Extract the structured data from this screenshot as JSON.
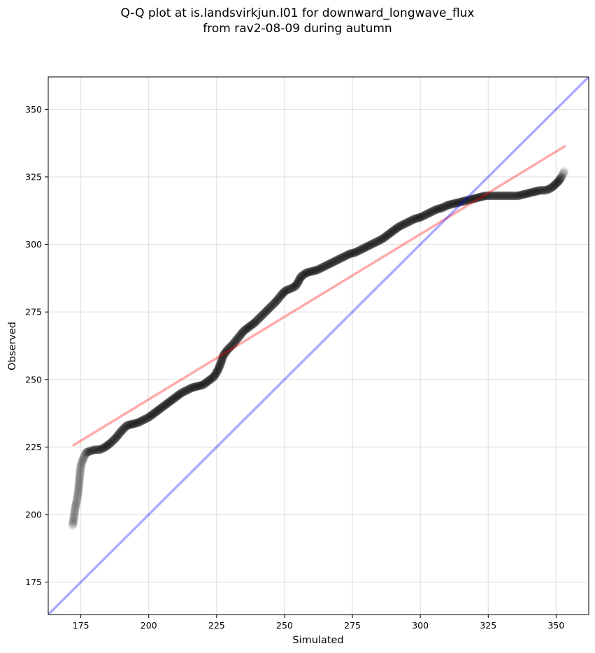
{
  "chart_data": {
    "type": "scatter",
    "title_lines": [
      "Q-Q plot at is.landsvirkjun.l01 for downward_longwave_flux",
      "from rav2-08-09 during autumn"
    ],
    "xlabel": "Simulated",
    "ylabel": "Observed",
    "xlim": [
      163,
      362
    ],
    "ylim": [
      163,
      362
    ],
    "xticks": [
      175,
      200,
      225,
      250,
      275,
      300,
      325,
      350
    ],
    "yticks": [
      175,
      200,
      225,
      250,
      275,
      300,
      325,
      350
    ],
    "grid": true,
    "quantile_points": [
      [
        172.0,
        196.0
      ],
      [
        172.4,
        198.5
      ],
      [
        173.0,
        203.0
      ],
      [
        173.3,
        204.0
      ],
      [
        174.0,
        208.0
      ],
      [
        174.3,
        211.0
      ],
      [
        174.6,
        214.5
      ],
      [
        175.0,
        218.0
      ],
      [
        175.6,
        220.0
      ],
      [
        176.3,
        221.5
      ],
      [
        177.0,
        223.0
      ],
      [
        178.5,
        223.5
      ],
      [
        180.0,
        224.0
      ],
      [
        182.0,
        224.0
      ],
      [
        184.0,
        225.0
      ],
      [
        186.0,
        226.5
      ],
      [
        188.0,
        228.5
      ],
      [
        190.0,
        231.0
      ],
      [
        192.0,
        233.0
      ],
      [
        194.0,
        233.5
      ],
      [
        196.0,
        234.0
      ],
      [
        198.0,
        235.0
      ],
      [
        200.0,
        236.0
      ],
      [
        202.0,
        237.5
      ],
      [
        204.0,
        239.0
      ],
      [
        206.0,
        240.5
      ],
      [
        208.0,
        242.0
      ],
      [
        210.0,
        243.5
      ],
      [
        212.0,
        245.0
      ],
      [
        214.0,
        246.0
      ],
      [
        216.0,
        247.0
      ],
      [
        218.0,
        247.5
      ],
      [
        220.0,
        248.0
      ],
      [
        222.0,
        249.5
      ],
      [
        224.0,
        251.0
      ],
      [
        225.5,
        253.5
      ],
      [
        226.5,
        256.0
      ],
      [
        227.5,
        259.0
      ],
      [
        229.0,
        261.0
      ],
      [
        231.0,
        263.0
      ],
      [
        233.0,
        265.5
      ],
      [
        235.0,
        268.0
      ],
      [
        237.0,
        269.5
      ],
      [
        239.0,
        271.0
      ],
      [
        241.0,
        273.0
      ],
      [
        243.0,
        275.0
      ],
      [
        245.0,
        277.0
      ],
      [
        247.0,
        279.0
      ],
      [
        249.0,
        281.5
      ],
      [
        250.5,
        283.0
      ],
      [
        252.0,
        283.5
      ],
      [
        254.0,
        284.5
      ],
      [
        255.0,
        286.0
      ],
      [
        256.0,
        288.0
      ],
      [
        258.0,
        289.5
      ],
      [
        260.0,
        290.0
      ],
      [
        262.0,
        290.5
      ],
      [
        264.0,
        291.5
      ],
      [
        266.0,
        292.5
      ],
      [
        268.0,
        293.5
      ],
      [
        270.0,
        294.5
      ],
      [
        272.0,
        295.5
      ],
      [
        274.0,
        296.5
      ],
      [
        276.0,
        297.0
      ],
      [
        278.0,
        298.0
      ],
      [
        280.0,
        299.0
      ],
      [
        282.0,
        300.0
      ],
      [
        284.0,
        301.0
      ],
      [
        286.0,
        302.0
      ],
      [
        288.0,
        303.5
      ],
      [
        290.0,
        305.0
      ],
      [
        292.0,
        306.5
      ],
      [
        294.0,
        307.5
      ],
      [
        296.0,
        308.5
      ],
      [
        298.0,
        309.5
      ],
      [
        300.0,
        310.0
      ],
      [
        302.0,
        311.0
      ],
      [
        304.0,
        312.0
      ],
      [
        306.0,
        313.0
      ],
      [
        308.0,
        313.5
      ],
      [
        310.0,
        314.5
      ],
      [
        312.0,
        315.0
      ],
      [
        314.0,
        315.5
      ],
      [
        316.0,
        316.0
      ],
      [
        318.0,
        316.5
      ],
      [
        320.0,
        317.0
      ],
      [
        322.0,
        317.5
      ],
      [
        324.0,
        318.0
      ],
      [
        326.0,
        318.0
      ],
      [
        328.0,
        318.0
      ],
      [
        330.0,
        318.0
      ],
      [
        332.0,
        318.0
      ],
      [
        334.0,
        318.0
      ],
      [
        336.0,
        318.0
      ],
      [
        338.0,
        318.5
      ],
      [
        340.0,
        319.0
      ],
      [
        342.0,
        319.5
      ],
      [
        344.0,
        320.0
      ],
      [
        346.0,
        320.0
      ],
      [
        347.5,
        320.5
      ],
      [
        349.0,
        321.5
      ],
      [
        350.0,
        322.5
      ],
      [
        351.0,
        323.5
      ],
      [
        352.0,
        325.0
      ],
      [
        353.0,
        327.0
      ]
    ],
    "fit_line": {
      "start": [
        172.0,
        225.5
      ],
      "end": [
        353.5,
        336.5
      ],
      "color": "#ff0000",
      "alpha": 0.33
    },
    "identity_line": {
      "slope": 1,
      "intercept": 0,
      "color": "#0000ff",
      "alpha": 0.33
    },
    "point_color": "#000000"
  }
}
